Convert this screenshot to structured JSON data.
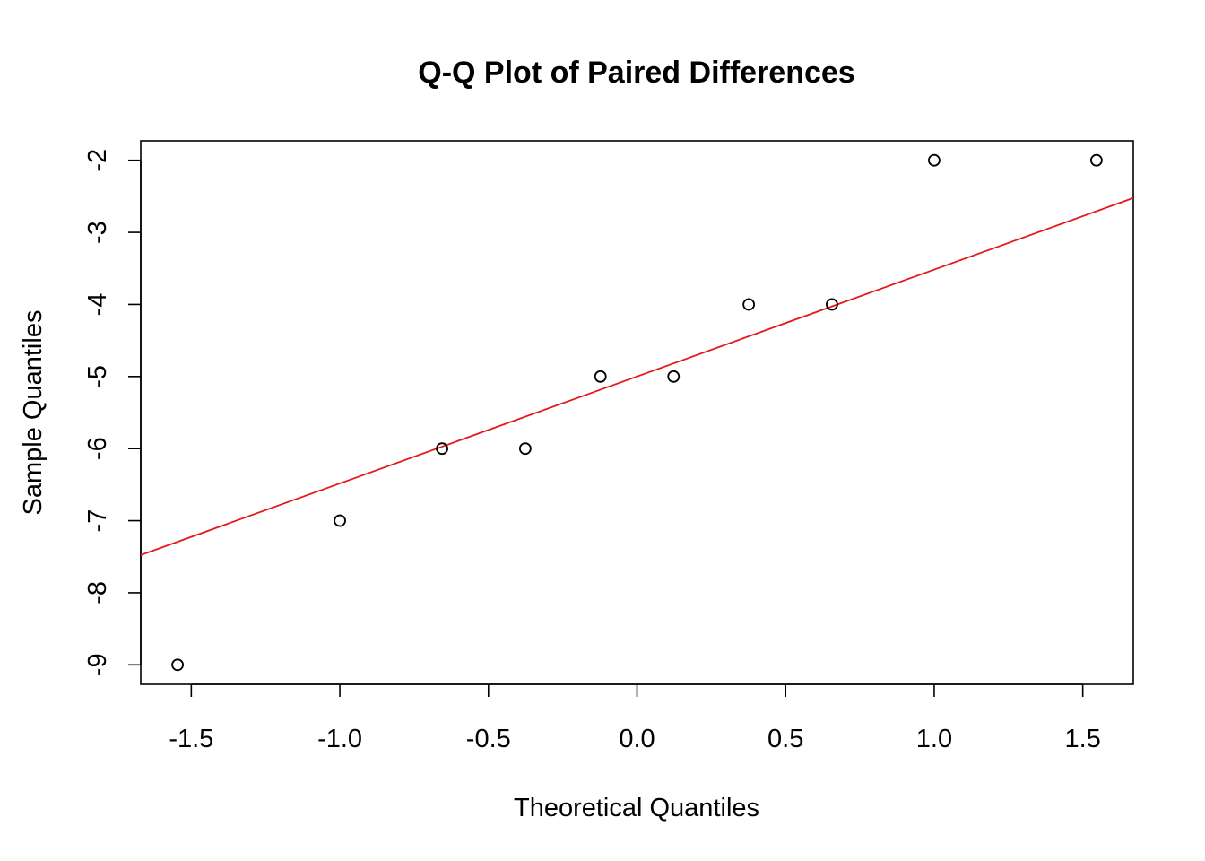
{
  "chart_data": {
    "type": "scatter",
    "title": "Q-Q Plot of Paired Differences",
    "xlabel": "Theoretical Quantiles",
    "ylabel": "Sample Quantiles",
    "xlim": [
      -1.67,
      1.67
    ],
    "ylim": [
      -9.27,
      -1.73
    ],
    "x_ticks": [
      -1.5,
      -1.0,
      -0.5,
      0.0,
      0.5,
      1.0,
      1.5
    ],
    "x_tick_labels": [
      "-1.5",
      "-1.0",
      "-0.5",
      "0.0",
      "0.5",
      "1.0",
      "1.5"
    ],
    "y_ticks": [
      -9,
      -8,
      -7,
      -6,
      -5,
      -4,
      -3,
      -2
    ],
    "y_tick_labels": [
      "-9",
      "-8",
      "-7",
      "-6",
      "-5",
      "-4",
      "-3",
      "-2"
    ],
    "points": [
      {
        "x": -1.546,
        "y": -9
      },
      {
        "x": -1.0,
        "y": -7
      },
      {
        "x": -0.656,
        "y": -6
      },
      {
        "x": -0.376,
        "y": -6
      },
      {
        "x": -0.123,
        "y": -5
      },
      {
        "x": 0.123,
        "y": -5
      },
      {
        "x": 0.376,
        "y": -4
      },
      {
        "x": 0.656,
        "y": -4
      },
      {
        "x": 1.0,
        "y": -2
      },
      {
        "x": 1.546,
        "y": -2
      }
    ],
    "reference_line": {
      "intercept": -5.0,
      "slope": 1.483,
      "color": "#e31a1c"
    },
    "point_color": "#000000",
    "grid": false,
    "legend": "none"
  }
}
